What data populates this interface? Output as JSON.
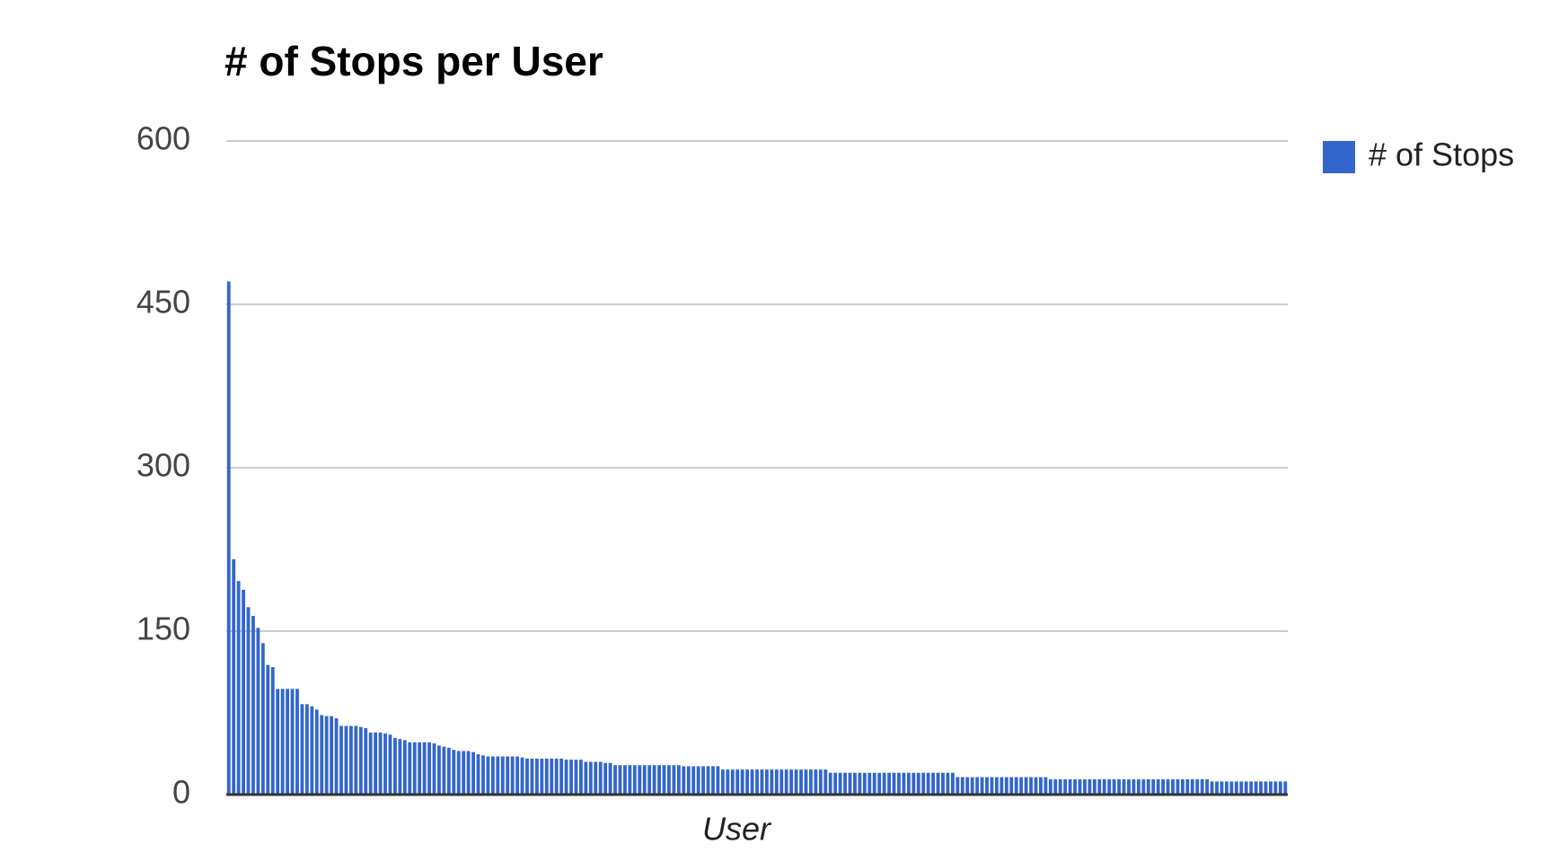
{
  "chart_data": {
    "type": "bar",
    "title": "# of Stops per User",
    "x_label": "User",
    "categories": [
      null,
      null,
      null,
      null,
      null,
      null,
      null,
      null,
      null,
      null,
      null,
      null,
      null,
      null,
      null,
      null,
      null,
      null,
      null,
      null,
      null,
      null,
      null,
      null,
      null,
      null,
      null,
      null,
      null,
      null,
      null,
      null,
      null,
      null,
      null,
      null,
      null,
      null,
      null,
      null,
      null,
      null,
      null,
      null,
      null,
      null,
      null,
      null,
      null,
      null,
      null,
      null,
      null,
      null,
      null,
      null,
      null,
      null,
      null,
      null,
      null,
      null,
      null,
      null,
      null,
      null,
      null,
      null,
      null,
      null,
      null,
      null,
      null,
      null,
      null,
      null,
      null,
      null,
      null,
      null,
      null,
      null,
      null,
      null,
      null,
      null,
      null,
      null,
      null,
      null,
      null,
      null,
      null,
      null,
      null,
      null,
      null,
      null,
      null,
      null,
      null,
      null,
      null,
      null,
      null,
      null,
      null,
      null,
      null,
      null,
      null,
      null,
      null,
      null,
      null,
      null,
      null,
      null,
      null,
      null,
      null,
      null,
      null,
      null,
      null,
      null,
      null,
      null,
      null,
      null,
      null,
      null,
      null,
      null,
      null,
      null,
      null,
      null,
      null,
      null,
      null,
      null,
      null,
      null,
      null,
      null,
      null,
      null,
      null,
      null,
      null,
      null,
      null,
      null,
      null,
      null,
      null,
      null,
      null,
      null,
      null,
      null,
      null,
      null,
      null,
      null,
      null,
      null,
      null,
      null,
      null,
      null,
      null,
      null,
      null,
      null,
      null,
      null,
      null,
      null,
      null,
      null,
      null,
      null,
      null,
      null,
      null,
      null,
      null,
      null,
      null,
      null,
      null,
      null,
      null,
      null,
      null,
      null,
      null,
      null,
      null,
      null,
      null,
      null,
      null,
      null,
      null,
      null,
      null,
      null,
      null,
      null,
      null,
      null,
      null,
      null,
      null
    ],
    "series": [
      {
        "name": "# of Stops",
        "color": "#3366cc",
        "values": [
          471,
          216,
          196,
          188,
          172,
          164,
          153,
          139,
          119,
          117,
          97,
          97,
          97,
          97,
          97,
          83,
          83,
          81,
          78,
          73,
          72,
          72,
          70,
          63,
          63,
          63,
          63,
          62,
          61,
          57,
          57,
          57,
          56,
          55,
          52,
          51,
          50,
          48,
          48,
          48,
          48,
          48,
          47,
          45,
          44,
          43,
          41,
          40,
          40,
          40,
          39,
          37,
          36,
          35,
          35,
          35,
          35,
          35,
          35,
          35,
          34,
          33,
          33,
          33,
          33,
          33,
          33,
          33,
          33,
          32,
          32,
          32,
          32,
          30,
          30,
          30,
          30,
          29,
          29,
          27,
          27,
          27,
          27,
          27,
          27,
          27,
          27,
          27,
          27,
          27,
          27,
          27,
          27,
          26,
          26,
          26,
          26,
          26,
          26,
          26,
          26,
          23,
          23,
          23,
          23,
          23,
          23,
          23,
          23,
          23,
          23,
          23,
          23,
          23,
          23,
          23,
          23,
          23,
          23,
          23,
          23,
          23,
          23,
          20,
          20,
          20,
          20,
          20,
          20,
          20,
          20,
          20,
          20,
          20,
          20,
          20,
          20,
          20,
          20,
          20,
          20,
          20,
          20,
          20,
          20,
          20,
          20,
          20,
          20,
          16,
          16,
          16,
          16,
          16,
          16,
          16,
          16,
          16,
          16,
          16,
          16,
          16,
          16,
          16,
          16,
          16,
          16,
          16,
          14,
          14,
          14,
          14,
          14,
          14,
          14,
          14,
          14,
          14,
          14,
          14,
          14,
          14,
          14,
          14,
          14,
          14,
          14,
          14,
          14,
          14,
          14,
          14,
          14,
          14,
          14,
          14,
          14,
          14,
          14,
          14,
          14,
          12,
          12,
          12,
          12,
          12,
          12,
          12,
          12,
          12,
          12,
          12,
          12,
          12,
          12,
          12,
          12
        ]
      }
    ],
    "ylim": [
      0,
      600
    ],
    "yticks": [
      0,
      150,
      300,
      450,
      600
    ],
    "grid": true,
    "legend": "right"
  }
}
